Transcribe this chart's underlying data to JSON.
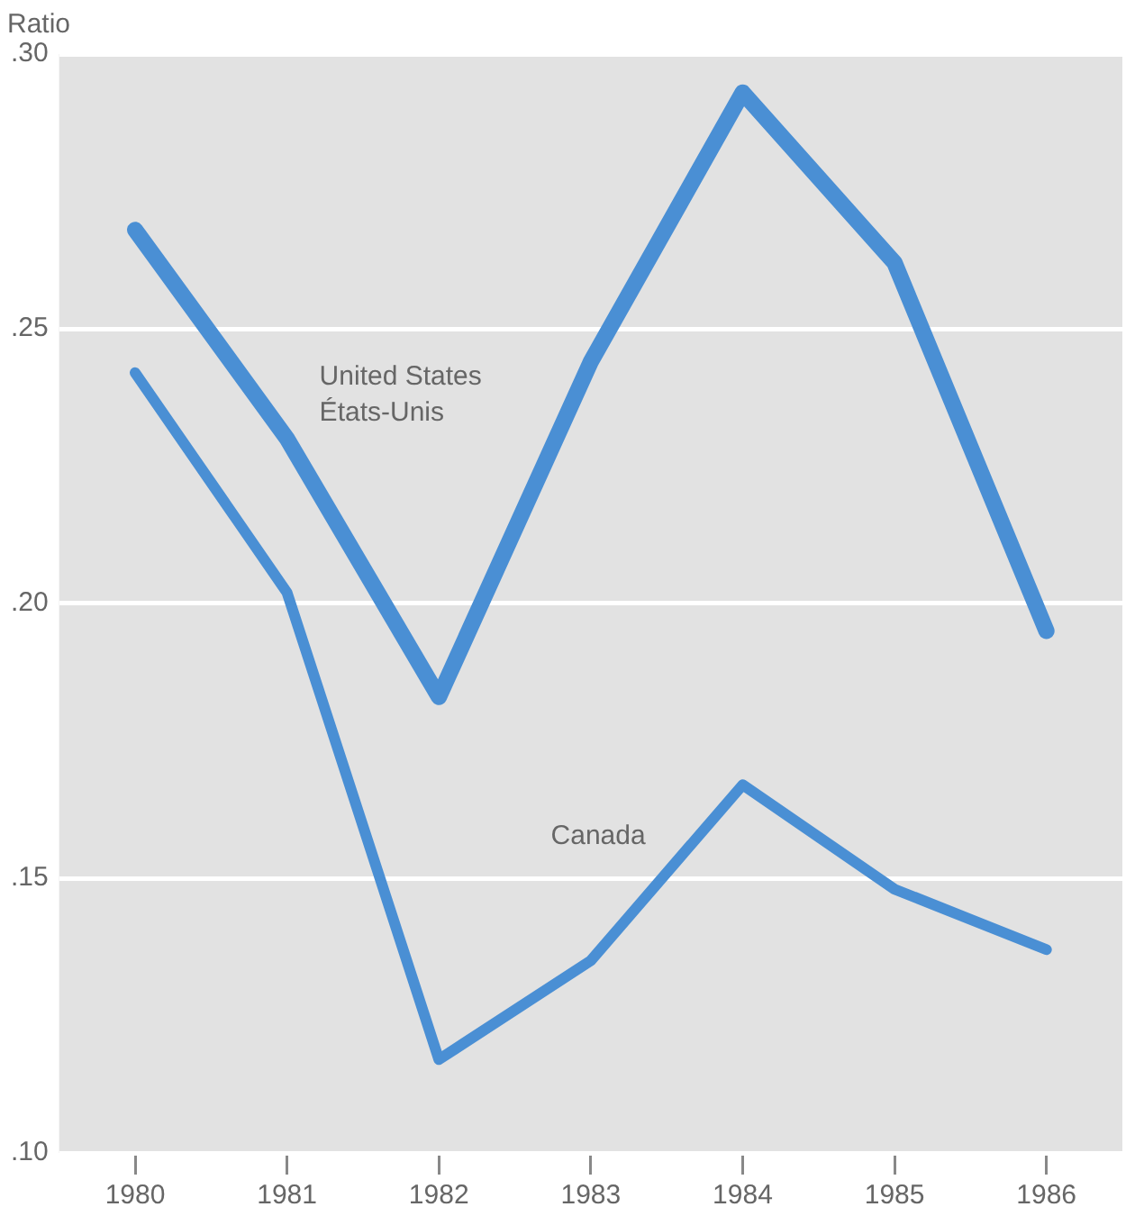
{
  "chart_data": {
    "type": "line",
    "ylabel": "Ratio",
    "categories": [
      "1980",
      "1981",
      "1982",
      "1983",
      "1984",
      "1985",
      "1986"
    ],
    "series": [
      {
        "name": "United States\nÉtats-Unis",
        "color": "#4a8fd4",
        "values": [
          0.268,
          0.23,
          0.183,
          0.244,
          0.293,
          0.262,
          0.195
        ]
      },
      {
        "name": "Canada",
        "color": "#4a8fd4",
        "values": [
          0.242,
          0.202,
          0.117,
          0.135,
          0.167,
          0.148,
          0.137
        ]
      }
    ],
    "ylim": [
      0.1,
      0.3
    ],
    "yticks": [
      {
        "value": 0.1,
        "label": ".10"
      },
      {
        "value": 0.15,
        "label": ".15"
      },
      {
        "value": 0.2,
        "label": ".20"
      },
      {
        "value": 0.25,
        "label": ".25"
      },
      {
        "value": 0.3,
        "label": ".30"
      }
    ],
    "grid": "y",
    "legend": false,
    "marker": "none",
    "line_style": "solid"
  }
}
